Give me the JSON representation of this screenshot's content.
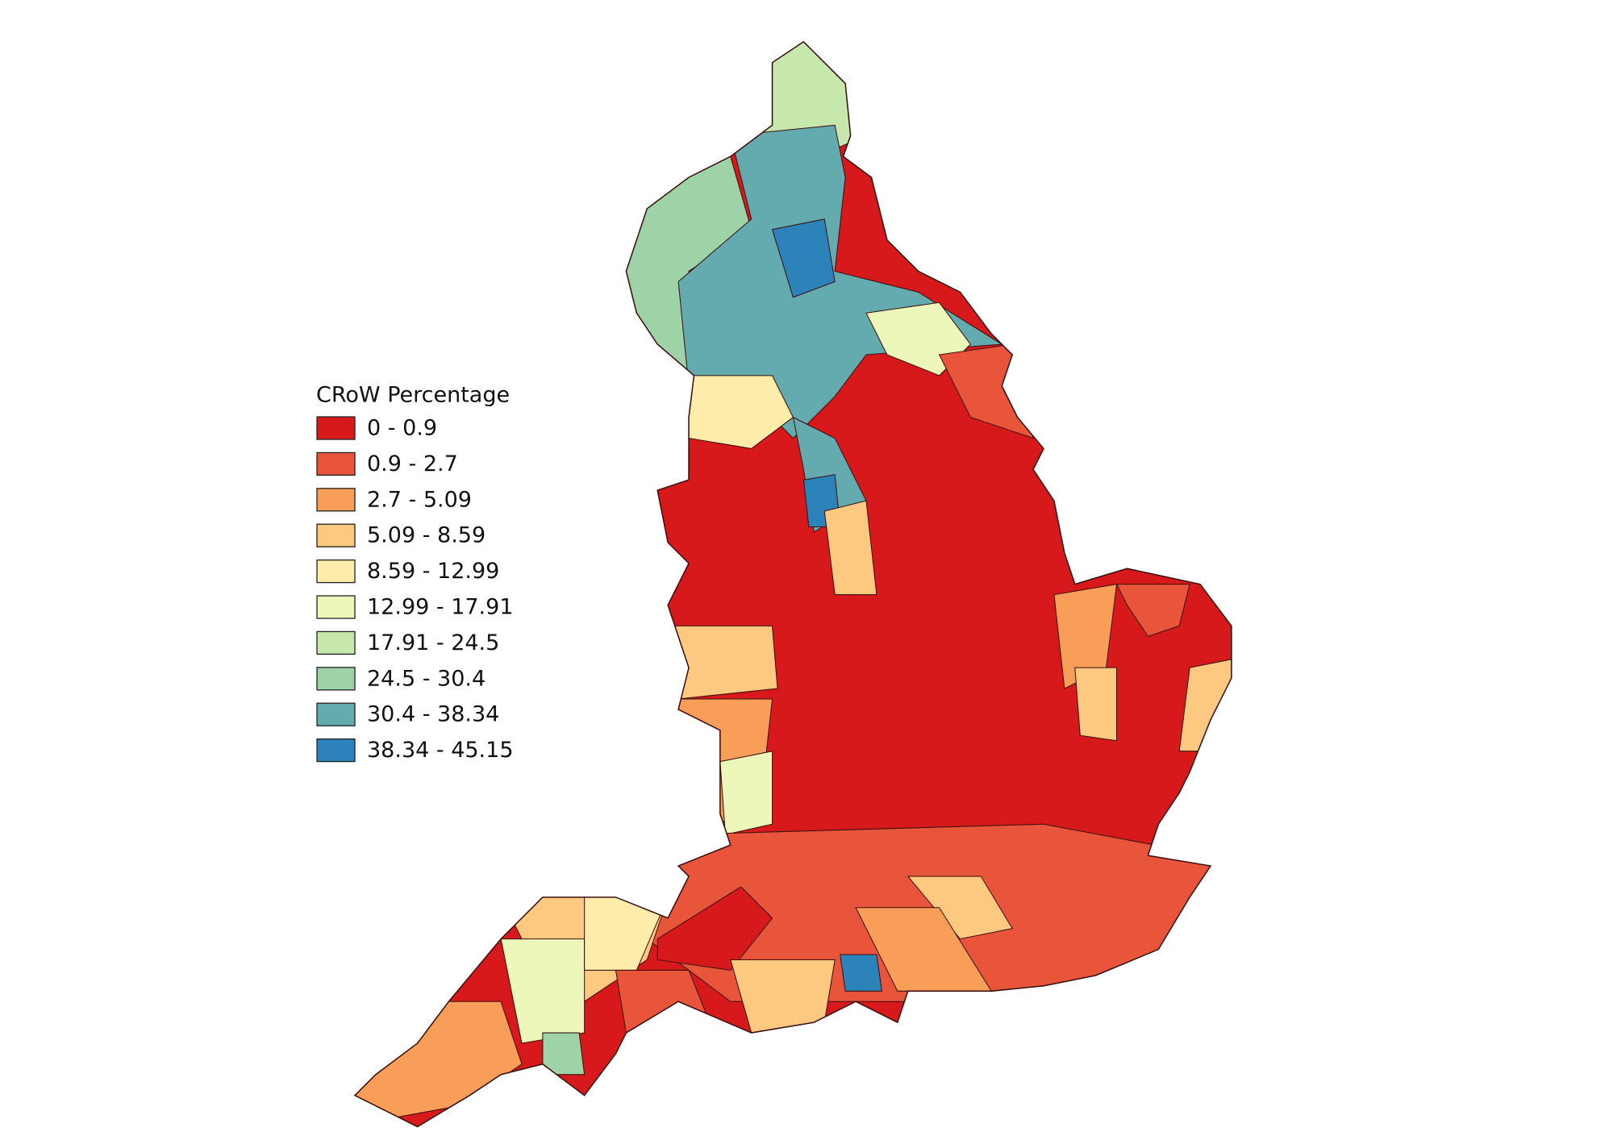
{
  "legend": {
    "title": "CRoW Percentage",
    "classes": [
      {
        "label": "0 - 0.9",
        "color": "#d7191c"
      },
      {
        "label": "0.9 - 2.7",
        "color": "#e8553a"
      },
      {
        "label": "2.7 - 5.09",
        "color": "#f99e59"
      },
      {
        "label": "5.09 - 8.59",
        "color": "#fdc980"
      },
      {
        "label": "8.59 - 12.99",
        "color": "#feedaa"
      },
      {
        "label": "12.99 - 17.91",
        "color": "#ecf7b9"
      },
      {
        "label": "17.91 - 24.5",
        "color": "#c7e8ad"
      },
      {
        "label": "24.5 - 30.4",
        "color": "#9dd3a7"
      },
      {
        "label": "30.4 - 38.34",
        "color": "#64abb0"
      },
      {
        "label": "38.34 - 45.15",
        "color": "#2b83ba"
      }
    ]
  }
}
